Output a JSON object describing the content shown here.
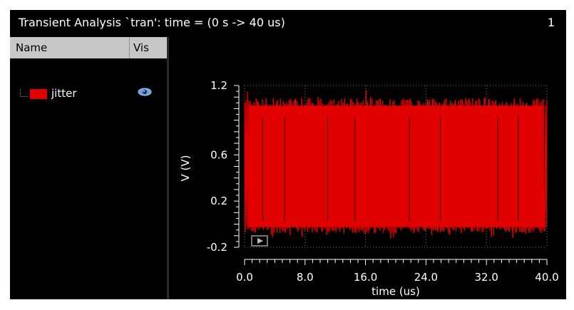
{
  "window": {
    "title": "Transient Analysis `tran': time = (0 s -> 40 us)",
    "number": "1"
  },
  "sidebar": {
    "headers": {
      "name": "Name",
      "vis": "Vis"
    },
    "signals": [
      {
        "label": "jitter",
        "color": "#e00000",
        "visible": true
      }
    ]
  },
  "chart_data": {
    "type": "line",
    "xlabel": "time (us)",
    "ylabel": "V (V)",
    "xlim": [
      0,
      40
    ],
    "ylim": [
      -0.2,
      1.2
    ],
    "x_ticks": [
      "0.0",
      "8.0",
      "16.0",
      "24.0",
      "32.0",
      "40.0"
    ],
    "y_ticks": [
      "1.2",
      "0.6",
      "0.2",
      "-0.2"
    ],
    "grid": true,
    "series": [
      {
        "name": "jitter",
        "color": "#e00000",
        "low": -0.05,
        "high": 1.05,
        "description_of_shape": "dense square wave toggling between ~0 V and ~1 V with jittered edges"
      }
    ]
  }
}
